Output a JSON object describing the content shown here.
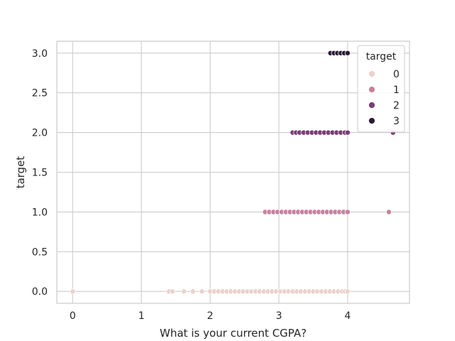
{
  "chart_data": {
    "type": "scatter",
    "xlabel": "What is your current CGPA?",
    "ylabel": "target",
    "xlim": [
      -0.23,
      4.9
    ],
    "ylim": [
      -0.15,
      3.15
    ],
    "xticks": [
      0,
      1,
      2,
      3,
      4
    ],
    "xtick_labels": [
      "0",
      "1",
      "2",
      "3",
      "4"
    ],
    "yticks": [
      0.0,
      0.5,
      1.0,
      1.5,
      2.0,
      2.5,
      3.0
    ],
    "ytick_labels": [
      "0.0",
      "0.5",
      "1.0",
      "1.5",
      "2.0",
      "2.5",
      "3.0"
    ],
    "grid": true,
    "legend": {
      "title": "target",
      "placement": "top-right"
    },
    "series": [
      {
        "name": "0",
        "color": "#ebd2cb",
        "y": 0,
        "x": [
          0.0,
          1.4,
          1.45,
          1.62,
          1.75,
          1.88,
          2.0,
          2.06,
          2.12,
          2.18,
          2.24,
          2.3,
          2.36,
          2.42,
          2.48,
          2.54,
          2.6,
          2.66,
          2.72,
          2.78,
          2.84,
          2.9,
          2.96,
          3.02,
          3.08,
          3.14,
          3.2,
          3.26,
          3.32,
          3.38,
          3.44,
          3.5,
          3.56,
          3.62,
          3.68,
          3.74,
          3.8,
          3.86,
          3.92,
          3.96,
          4.0
        ]
      },
      {
        "name": "1",
        "color": "#c6829e",
        "y": 1,
        "x": [
          2.8,
          2.86,
          2.92,
          2.98,
          3.04,
          3.1,
          3.16,
          3.22,
          3.28,
          3.34,
          3.4,
          3.46,
          3.52,
          3.58,
          3.64,
          3.7,
          3.76,
          3.82,
          3.88,
          3.94,
          4.0,
          4.6
        ]
      },
      {
        "name": "2",
        "color": "#7a3e73",
        "y": 2,
        "x": [
          3.2,
          3.25,
          3.3,
          3.36,
          3.42,
          3.48,
          3.54,
          3.6,
          3.66,
          3.72,
          3.78,
          3.84,
          3.9,
          3.96,
          4.0,
          4.66
        ]
      },
      {
        "name": "3",
        "color": "#2c1b36",
        "y": 3,
        "x": [
          3.75,
          3.8,
          3.85,
          3.9,
          3.95,
          4.0
        ]
      }
    ]
  }
}
